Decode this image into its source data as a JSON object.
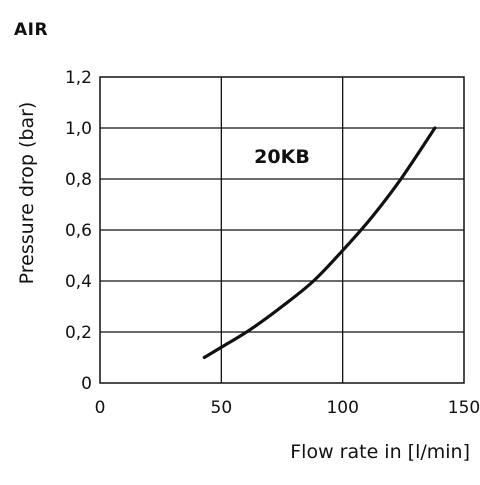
{
  "heading": "AIR",
  "colors": {
    "axis": "#111111",
    "grid": "#111111",
    "curve": "#111111",
    "background": "#ffffff"
  },
  "chart_data": {
    "type": "line",
    "title": "",
    "xlabel": "Flow rate in [l/min]",
    "ylabel": "Pressure drop (bar)",
    "xlim": [
      0,
      150
    ],
    "ylim": [
      0,
      1.2
    ],
    "x_ticks": [
      0,
      50,
      100,
      150
    ],
    "x_tick_labels": [
      "0",
      "50",
      "100",
      "150"
    ],
    "y_ticks": [
      0,
      0.2,
      0.4,
      0.6,
      0.8,
      1.0,
      1.2
    ],
    "y_tick_labels": [
      "0",
      "0,2",
      "0,4",
      "0,6",
      "0,8",
      "1,0",
      "1,2"
    ],
    "grid": true,
    "series": [
      {
        "name": "20KB",
        "x": [
          43,
          50,
          62,
          75,
          88,
          100,
          112,
          124,
          138
        ],
        "y": [
          0.1,
          0.14,
          0.21,
          0.3,
          0.4,
          0.52,
          0.65,
          0.8,
          1.0
        ]
      }
    ],
    "annotations": [
      {
        "text": "20KB",
        "x": 75,
        "y": 0.89
      }
    ]
  }
}
